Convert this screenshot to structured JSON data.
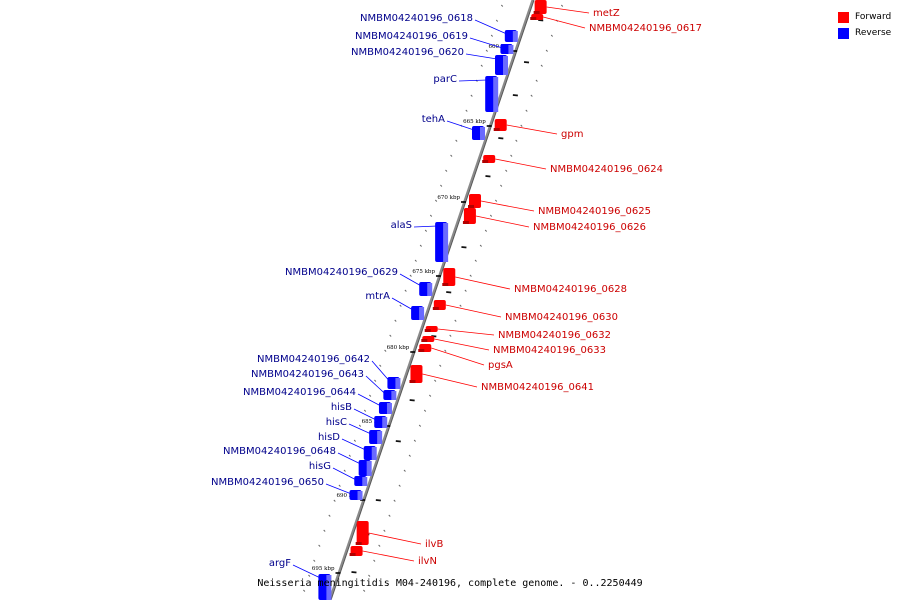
{
  "legend": {
    "forward_label": "Forward",
    "reverse_label": "Reverse",
    "forward_color": "#ff0000",
    "reverse_color": "#0000ff"
  },
  "caption": "Neisseria meningitidis M04-240196, complete genome. - 0..2250449",
  "ticks": [
    {
      "label": "660 kbp"
    },
    {
      "label": "665 kbp"
    },
    {
      "label": "670 kbp"
    },
    {
      "label": "675 kbp"
    },
    {
      "label": "680 kbp"
    },
    {
      "label": "685 kbp"
    },
    {
      "label": "690 kbp"
    },
    {
      "label": "695 kbp"
    }
  ],
  "genes_forward": [
    {
      "name": "metZ"
    },
    {
      "name": "NMBM04240196_0617"
    },
    {
      "name": "gpm"
    },
    {
      "name": "NMBM04240196_0624"
    },
    {
      "name": "NMBM04240196_0625"
    },
    {
      "name": "NMBM04240196_0626"
    },
    {
      "name": "NMBM04240196_0628"
    },
    {
      "name": "NMBM04240196_0630"
    },
    {
      "name": "NMBM04240196_0632"
    },
    {
      "name": "NMBM04240196_0633"
    },
    {
      "name": "pgsA"
    },
    {
      "name": "NMBM04240196_0641"
    },
    {
      "name": "ilvB"
    },
    {
      "name": "ilvN"
    }
  ],
  "genes_reverse": [
    {
      "name": "NMBM04240196_0618"
    },
    {
      "name": "NMBM04240196_0619"
    },
    {
      "name": "NMBM04240196_0620"
    },
    {
      "name": "parC"
    },
    {
      "name": "tehA"
    },
    {
      "name": "alaS"
    },
    {
      "name": "NMBM04240196_0629"
    },
    {
      "name": "mtrA"
    },
    {
      "name": "NMBM04240196_0642"
    },
    {
      "name": "NMBM04240196_0643"
    },
    {
      "name": "NMBM04240196_0644"
    },
    {
      "name": "hisB"
    },
    {
      "name": "hisC"
    },
    {
      "name": "hisD"
    },
    {
      "name": "NMBM04240196_0648"
    },
    {
      "name": "hisG"
    },
    {
      "name": "NMBM04240196_0650"
    },
    {
      "name": "argF"
    }
  ]
}
